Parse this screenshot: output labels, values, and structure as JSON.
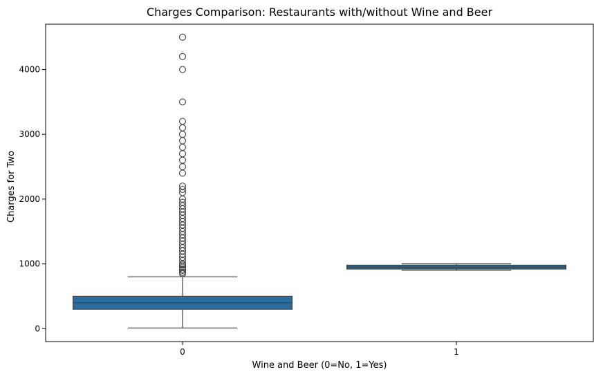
{
  "chart_data": {
    "type": "boxplot",
    "title": "Charges Comparison: Restaurants with/without Wine and Beer",
    "xlabel": "Wine and Beer (0=No, 1=Yes)",
    "ylabel": "Charges for Two",
    "ylim": [
      -200,
      4700
    ],
    "yticks": [
      0,
      1000,
      2000,
      3000,
      4000
    ],
    "grid": false,
    "box_color": "#2b6d9e",
    "line_color": "#3d3d3d",
    "groups": [
      {
        "category": "0",
        "whisker_low": 10,
        "q1": 300,
        "median": 400,
        "q3": 500,
        "whisker_high": 800,
        "outliers": [
          850,
          870,
          900,
          920,
          950,
          980,
          1000,
          1050,
          1100,
          1150,
          1200,
          1250,
          1300,
          1350,
          1400,
          1450,
          1500,
          1550,
          1600,
          1650,
          1700,
          1750,
          1800,
          1850,
          1900,
          1950,
          2000,
          2100,
          2150,
          2200,
          2400,
          2500,
          2600,
          2700,
          2800,
          2900,
          3000,
          3100,
          3200,
          3500,
          4000,
          4200,
          4500
        ]
      },
      {
        "category": "1",
        "whisker_low": 900,
        "q1": 920,
        "median": 950,
        "q3": 980,
        "whisker_high": 1000,
        "outliers": []
      }
    ]
  }
}
